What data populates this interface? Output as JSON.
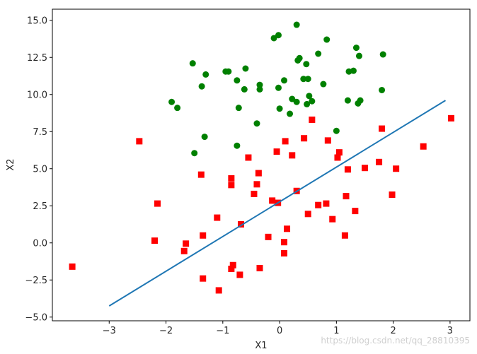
{
  "watermark": "https://blog.csdn.net/qq_28810395",
  "chart_data": {
    "type": "scatter",
    "xlabel": "X1",
    "ylabel": "X2",
    "xlim": [
      -4.0,
      3.35
    ],
    "ylim": [
      -5.25,
      15.75
    ],
    "xticks": [
      -3,
      -2,
      -1,
      0,
      1,
      2,
      3
    ],
    "xtick_labels": [
      "−3",
      "−2",
      "−1",
      "0",
      "1",
      "2",
      "3"
    ],
    "yticks": [
      -5.0,
      -2.5,
      0.0,
      2.5,
      5.0,
      7.5,
      10.0,
      12.5,
      15.0
    ],
    "ytick_labels": [
      "−5.0",
      "−2.5",
      "0.0",
      "2.5",
      "5.0",
      "7.5",
      "10.0",
      "12.5",
      "15.0"
    ],
    "grid": false,
    "series": [
      {
        "marker": "circle",
        "color": "#008000",
        "points": [
          [
            0.3,
            14.7
          ],
          [
            -0.9,
            11.55
          ],
          [
            -0.02,
            14.0
          ],
          [
            -0.1,
            13.8
          ],
          [
            0.83,
            13.7
          ],
          [
            1.35,
            13.15
          ],
          [
            1.4,
            12.6
          ],
          [
            1.82,
            12.7
          ],
          [
            0.68,
            12.75
          ],
          [
            0.35,
            12.45
          ],
          [
            0.32,
            12.3
          ],
          [
            0.47,
            12.05
          ],
          [
            -1.53,
            12.1
          ],
          [
            -1.3,
            11.35
          ],
          [
            -0.95,
            11.55
          ],
          [
            -0.6,
            11.75
          ],
          [
            -0.75,
            10.95
          ],
          [
            0.08,
            10.95
          ],
          [
            0.42,
            11.05
          ],
          [
            0.5,
            11.05
          ],
          [
            1.22,
            11.55
          ],
          [
            1.3,
            11.6
          ],
          [
            -1.37,
            10.55
          ],
          [
            -0.35,
            10.65
          ],
          [
            -0.35,
            10.35
          ],
          [
            -0.62,
            10.35
          ],
          [
            -0.02,
            10.45
          ],
          [
            0.77,
            10.7
          ],
          [
            1.8,
            10.3
          ],
          [
            0.52,
            9.9
          ],
          [
            0.22,
            9.7
          ],
          [
            0.3,
            9.5
          ],
          [
            0.48,
            9.35
          ],
          [
            0.57,
            9.55
          ],
          [
            1.2,
            9.6
          ],
          [
            1.38,
            9.4
          ],
          [
            1.42,
            9.6
          ],
          [
            -1.9,
            9.5
          ],
          [
            -1.8,
            9.1
          ],
          [
            -0.72,
            9.1
          ],
          [
            0.0,
            9.05
          ],
          [
            0.18,
            8.7
          ],
          [
            -0.4,
            8.05
          ],
          [
            1.0,
            7.55
          ],
          [
            -1.32,
            7.15
          ],
          [
            -0.75,
            6.55
          ],
          [
            -1.5,
            6.05
          ]
        ]
      },
      {
        "marker": "square",
        "color": "#ff0000",
        "points": [
          [
            0.57,
            8.3
          ],
          [
            3.02,
            8.4
          ],
          [
            1.8,
            7.7
          ],
          [
            0.43,
            7.05
          ],
          [
            0.85,
            6.9
          ],
          [
            -2.47,
            6.85
          ],
          [
            0.1,
            6.85
          ],
          [
            -0.05,
            6.15
          ],
          [
            1.05,
            6.1
          ],
          [
            2.53,
            6.5
          ],
          [
            0.22,
            5.9
          ],
          [
            1.02,
            5.75
          ],
          [
            -0.55,
            5.75
          ],
          [
            1.75,
            5.45
          ],
          [
            1.5,
            5.05
          ],
          [
            1.2,
            4.95
          ],
          [
            2.05,
            5.0
          ],
          [
            -1.38,
            4.6
          ],
          [
            -0.37,
            4.7
          ],
          [
            -0.85,
            4.35
          ],
          [
            -0.85,
            3.9
          ],
          [
            -0.4,
            3.95
          ],
          [
            0.3,
            3.5
          ],
          [
            -0.45,
            3.3
          ],
          [
            1.98,
            3.25
          ],
          [
            1.17,
            3.15
          ],
          [
            -0.13,
            2.85
          ],
          [
            -0.03,
            2.7
          ],
          [
            0.82,
            2.65
          ],
          [
            0.68,
            2.55
          ],
          [
            -2.15,
            2.65
          ],
          [
            1.33,
            2.15
          ],
          [
            0.5,
            1.95
          ],
          [
            -1.1,
            1.7
          ],
          [
            0.93,
            1.6
          ],
          [
            -0.68,
            1.25
          ],
          [
            0.13,
            0.95
          ],
          [
            1.15,
            0.5
          ],
          [
            -1.35,
            0.5
          ],
          [
            -0.2,
            0.4
          ],
          [
            -2.2,
            0.15
          ],
          [
            0.08,
            0.05
          ],
          [
            -1.65,
            -0.05
          ],
          [
            -1.68,
            -0.55
          ],
          [
            0.08,
            -0.7
          ],
          [
            -0.82,
            -1.5
          ],
          [
            -3.65,
            -1.6
          ],
          [
            -0.85,
            -1.75
          ],
          [
            -0.35,
            -1.7
          ],
          [
            -0.7,
            -2.15
          ],
          [
            -1.35,
            -2.4
          ],
          [
            -1.07,
            -3.2
          ]
        ]
      },
      {
        "marker": "line",
        "color": "#1f77b4",
        "points": [
          [
            -3.0,
            -4.25
          ],
          [
            2.92,
            9.6
          ]
        ]
      }
    ]
  }
}
